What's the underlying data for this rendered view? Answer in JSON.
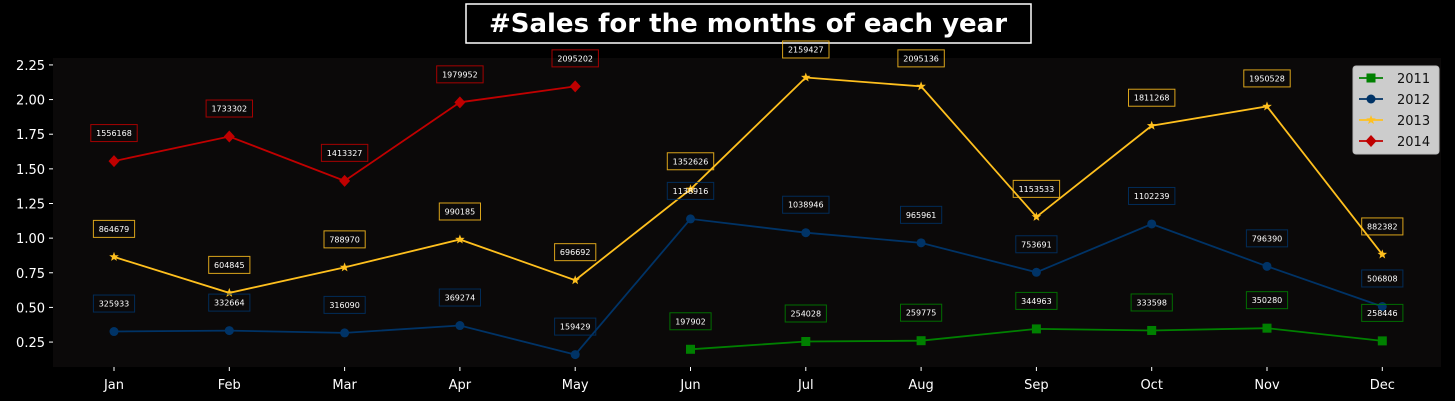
{
  "chart_data": {
    "type": "line",
    "title": "#Sales for the months of each year",
    "xlabel": "",
    "ylabel": "",
    "categories": [
      "Jan",
      "Feb",
      "Mar",
      "Apr",
      "May",
      "Jun",
      "Jul",
      "Aug",
      "Sep",
      "Oct",
      "Nov",
      "Dec"
    ],
    "yticks": [
      "0.25",
      "0.50",
      "0.75",
      "1.00",
      "1.25",
      "1.50",
      "1.75",
      "2.00",
      "2.25"
    ],
    "ytick_values": [
      250000,
      500000,
      750000,
      1000000,
      1250000,
      1500000,
      1750000,
      2000000,
      2250000
    ],
    "ylim": [
      70000,
      2300000
    ],
    "grid": false,
    "legend_position": "top-right",
    "series": [
      {
        "name": "2011",
        "color": "#008000",
        "marker": "square",
        "values": [
          null,
          null,
          null,
          null,
          null,
          197902,
          254028,
          259775,
          344963,
          333598,
          350280,
          258446
        ],
        "labels": [
          null,
          null,
          null,
          null,
          null,
          "197902",
          "254028",
          "259775",
          "344963",
          "333598",
          "350280",
          "258446"
        ]
      },
      {
        "name": "2012",
        "color": "#003366",
        "marker": "circle",
        "values": [
          325933,
          332664,
          316090,
          369274,
          159429,
          1138916,
          1038946,
          965961,
          753691,
          1102239,
          796390,
          506808
        ],
        "labels": [
          "325933",
          "332664",
          "316090",
          "369274",
          "159429",
          "1138916",
          "1038946",
          "965961",
          "753691",
          "1102239",
          "796390",
          "506808"
        ]
      },
      {
        "name": "2013",
        "color": "#FFC01E",
        "marker": "star",
        "values": [
          864679,
          604845,
          788970,
          990185,
          696692,
          1352626,
          2159427,
          2095136,
          1153533,
          1811268,
          1950528,
          882382
        ],
        "labels": [
          "864679",
          "604845",
          "788970",
          "990185",
          "696692",
          "1352626",
          "2159427",
          "2095136",
          "1153533",
          "1811268",
          "1950528",
          "882382"
        ]
      },
      {
        "name": "2014",
        "color": "#C00000",
        "marker": "diamond",
        "values": [
          1556168,
          1733302,
          1413327,
          1979952,
          2095202,
          null,
          null,
          null,
          null,
          null,
          null,
          null
        ],
        "labels": [
          "1556168",
          "1733302",
          "1413327",
          "1979952",
          "2095202",
          null,
          null,
          null,
          null,
          null,
          null,
          null
        ]
      }
    ]
  }
}
